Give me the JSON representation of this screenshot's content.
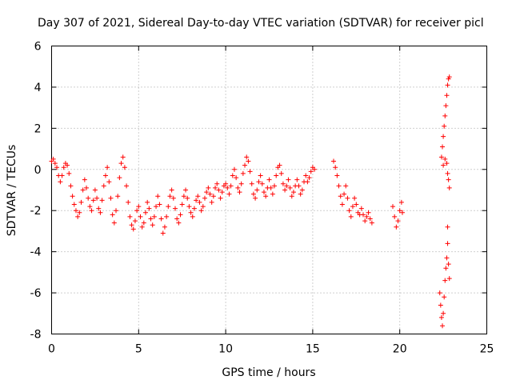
{
  "chart_data": {
    "type": "scatter",
    "title": "Day 307 of 2021, Sidereal Day-to-day VTEC variation (SDTVAR) for receiver picl",
    "xlabel": "GPS time / hours",
    "ylabel": "SDTVAR / TECUs",
    "xlim": [
      0,
      25
    ],
    "ylim": [
      -8,
      6
    ],
    "x_ticks": [
      0,
      5,
      10,
      15,
      20,
      25
    ],
    "y_ticks": [
      -8,
      -6,
      -4,
      -2,
      0,
      2,
      4,
      6
    ],
    "x_tick_labels": [
      "0",
      "5",
      "10",
      "15",
      "20",
      "25"
    ],
    "y_tick_labels": [
      "-8",
      "-6",
      "-4",
      "-2",
      "0",
      "2",
      "4",
      "6"
    ],
    "grid": true,
    "marker": "+",
    "color": "#ff0000",
    "series": [
      {
        "name": "SDTVAR",
        "points": [
          [
            0.0,
            0.4
          ],
          [
            0.1,
            0.5
          ],
          [
            0.2,
            0.3
          ],
          [
            0.3,
            0.1
          ],
          [
            0.4,
            -0.3
          ],
          [
            0.5,
            -0.6
          ],
          [
            0.6,
            -0.3
          ],
          [
            0.7,
            0.1
          ],
          [
            0.8,
            0.3
          ],
          [
            0.9,
            0.2
          ],
          [
            1.0,
            -0.2
          ],
          [
            1.1,
            -0.8
          ],
          [
            1.2,
            -1.3
          ],
          [
            1.3,
            -1.7
          ],
          [
            1.4,
            -2.0
          ],
          [
            1.5,
            -2.3
          ],
          [
            1.6,
            -2.1
          ],
          [
            1.7,
            -1.6
          ],
          [
            1.8,
            -1.0
          ],
          [
            1.9,
            -0.5
          ],
          [
            2.0,
            -0.9
          ],
          [
            2.1,
            -1.4
          ],
          [
            2.2,
            -1.8
          ],
          [
            2.3,
            -2.0
          ],
          [
            2.4,
            -1.5
          ],
          [
            2.5,
            -1.0
          ],
          [
            2.6,
            -1.4
          ],
          [
            2.7,
            -1.9
          ],
          [
            2.8,
            -2.1
          ],
          [
            2.9,
            -1.5
          ],
          [
            3.0,
            -0.8
          ],
          [
            3.1,
            -0.3
          ],
          [
            3.2,
            0.1
          ],
          [
            3.3,
            -0.6
          ],
          [
            3.4,
            -1.4
          ],
          [
            3.5,
            -2.2
          ],
          [
            3.6,
            -2.6
          ],
          [
            3.7,
            -2.0
          ],
          [
            3.8,
            -1.3
          ],
          [
            3.9,
            -0.4
          ],
          [
            4.0,
            0.3
          ],
          [
            4.1,
            0.6
          ],
          [
            4.2,
            0.1
          ],
          [
            4.3,
            -0.8
          ],
          [
            4.4,
            -1.6
          ],
          [
            4.5,
            -2.3
          ],
          [
            4.6,
            -2.7
          ],
          [
            4.7,
            -2.9
          ],
          [
            4.8,
            -2.5
          ],
          [
            4.9,
            -2.0
          ],
          [
            5.0,
            -1.8
          ],
          [
            5.1,
            -2.3
          ],
          [
            5.2,
            -2.8
          ],
          [
            5.3,
            -2.6
          ],
          [
            5.4,
            -2.1
          ],
          [
            5.5,
            -1.6
          ],
          [
            5.6,
            -1.9
          ],
          [
            5.7,
            -2.4
          ],
          [
            5.8,
            -2.7
          ],
          [
            5.9,
            -2.3
          ],
          [
            6.0,
            -1.8
          ],
          [
            6.1,
            -1.3
          ],
          [
            6.2,
            -1.7
          ],
          [
            6.3,
            -2.4
          ],
          [
            6.4,
            -3.1
          ],
          [
            6.5,
            -2.8
          ],
          [
            6.6,
            -2.3
          ],
          [
            6.7,
            -1.8
          ],
          [
            6.8,
            -1.3
          ],
          [
            6.9,
            -1.0
          ],
          [
            7.0,
            -1.4
          ],
          [
            7.1,
            -1.9
          ],
          [
            7.2,
            -2.4
          ],
          [
            7.3,
            -2.6
          ],
          [
            7.4,
            -2.2
          ],
          [
            7.5,
            -1.7
          ],
          [
            7.6,
            -1.3
          ],
          [
            7.7,
            -1.0
          ],
          [
            7.8,
            -1.4
          ],
          [
            7.9,
            -1.8
          ],
          [
            8.0,
            -2.1
          ],
          [
            8.1,
            -2.3
          ],
          [
            8.2,
            -1.9
          ],
          [
            8.3,
            -1.5
          ],
          [
            8.4,
            -1.3
          ],
          [
            8.5,
            -1.6
          ],
          [
            8.6,
            -2.0
          ],
          [
            8.7,
            -1.8
          ],
          [
            8.8,
            -1.4
          ],
          [
            8.9,
            -1.1
          ],
          [
            9.0,
            -0.9
          ],
          [
            9.1,
            -1.2
          ],
          [
            9.2,
            -1.6
          ],
          [
            9.3,
            -1.3
          ],
          [
            9.4,
            -0.9
          ],
          [
            9.5,
            -0.7
          ],
          [
            9.6,
            -1.0
          ],
          [
            9.7,
            -1.4
          ],
          [
            9.8,
            -1.1
          ],
          [
            9.9,
            -0.8
          ],
          [
            10.0,
            -0.7
          ],
          [
            10.1,
            -0.9
          ],
          [
            10.2,
            -1.2
          ],
          [
            10.3,
            -0.8
          ],
          [
            10.4,
            -0.3
          ],
          [
            10.5,
            0.0
          ],
          [
            10.6,
            -0.4
          ],
          [
            10.7,
            -0.9
          ],
          [
            10.8,
            -1.1
          ],
          [
            10.9,
            -0.7
          ],
          [
            11.0,
            -0.2
          ],
          [
            11.1,
            0.2
          ],
          [
            11.2,
            0.6
          ],
          [
            11.3,
            0.4
          ],
          [
            11.4,
            -0.1
          ],
          [
            11.5,
            -0.7
          ],
          [
            11.6,
            -1.2
          ],
          [
            11.7,
            -1.4
          ],
          [
            11.8,
            -1.0
          ],
          [
            11.9,
            -0.6
          ],
          [
            12.0,
            -0.3
          ],
          [
            12.1,
            -0.7
          ],
          [
            12.2,
            -1.1
          ],
          [
            12.3,
            -1.3
          ],
          [
            12.4,
            -0.9
          ],
          [
            12.5,
            -0.5
          ],
          [
            12.6,
            -0.9
          ],
          [
            12.7,
            -1.2
          ],
          [
            12.8,
            -0.8
          ],
          [
            12.9,
            -0.3
          ],
          [
            13.0,
            0.1
          ],
          [
            13.1,
            0.2
          ],
          [
            13.2,
            -0.2
          ],
          [
            13.3,
            -0.7
          ],
          [
            13.4,
            -1.0
          ],
          [
            13.5,
            -0.8
          ],
          [
            13.6,
            -0.5
          ],
          [
            13.7,
            -0.9
          ],
          [
            13.8,
            -1.3
          ],
          [
            13.9,
            -1.1
          ],
          [
            14.0,
            -0.8
          ],
          [
            14.1,
            -0.5
          ],
          [
            14.2,
            -0.8
          ],
          [
            14.3,
            -1.2
          ],
          [
            14.4,
            -1.0
          ],
          [
            14.5,
            -0.6
          ],
          [
            14.6,
            -0.3
          ],
          [
            14.7,
            -0.6
          ],
          [
            14.8,
            -0.4
          ],
          [
            14.9,
            -0.1
          ],
          [
            15.0,
            0.1
          ],
          [
            15.1,
            0.0
          ],
          [
            16.2,
            0.4
          ],
          [
            16.3,
            0.1
          ],
          [
            16.4,
            -0.3
          ],
          [
            16.5,
            -0.8
          ],
          [
            16.6,
            -1.3
          ],
          [
            16.7,
            -1.7
          ],
          [
            16.8,
            -1.2
          ],
          [
            16.9,
            -0.8
          ],
          [
            17.0,
            -1.4
          ],
          [
            17.1,
            -2.0
          ],
          [
            17.2,
            -2.3
          ],
          [
            17.3,
            -1.8
          ],
          [
            17.4,
            -1.4
          ],
          [
            17.5,
            -1.7
          ],
          [
            17.6,
            -2.1
          ],
          [
            17.7,
            -2.2
          ],
          [
            17.8,
            -1.9
          ],
          [
            17.9,
            -2.2
          ],
          [
            18.0,
            -2.5
          ],
          [
            18.1,
            -2.3
          ],
          [
            18.2,
            -2.1
          ],
          [
            18.3,
            -2.4
          ],
          [
            18.4,
            -2.6
          ],
          [
            19.6,
            -1.8
          ],
          [
            19.7,
            -2.3
          ],
          [
            19.8,
            -2.8
          ],
          [
            19.9,
            -2.5
          ],
          [
            20.0,
            -2.0
          ],
          [
            20.1,
            -1.6
          ],
          [
            20.15,
            -2.1
          ],
          [
            22.4,
            0.6
          ],
          [
            22.45,
            1.1
          ],
          [
            22.5,
            1.6
          ],
          [
            22.55,
            2.1
          ],
          [
            22.6,
            2.6
          ],
          [
            22.65,
            3.1
          ],
          [
            22.7,
            3.6
          ],
          [
            22.75,
            4.1
          ],
          [
            22.8,
            4.4
          ],
          [
            22.85,
            4.5
          ],
          [
            22.5,
            0.2
          ],
          [
            22.6,
            0.5
          ],
          [
            22.7,
            0.3
          ],
          [
            22.75,
            -0.2
          ],
          [
            22.8,
            -0.5
          ],
          [
            22.85,
            -0.9
          ],
          [
            22.3,
            -6.0
          ],
          [
            22.35,
            -6.6
          ],
          [
            22.4,
            -7.2
          ],
          [
            22.45,
            -7.6
          ],
          [
            22.5,
            -7.0
          ],
          [
            22.55,
            -6.2
          ],
          [
            22.6,
            -5.4
          ],
          [
            22.65,
            -4.8
          ],
          [
            22.7,
            -4.3
          ],
          [
            22.75,
            -3.6
          ],
          [
            22.75,
            -2.8
          ],
          [
            22.8,
            -4.6
          ],
          [
            22.85,
            -5.3
          ]
        ]
      }
    ]
  }
}
